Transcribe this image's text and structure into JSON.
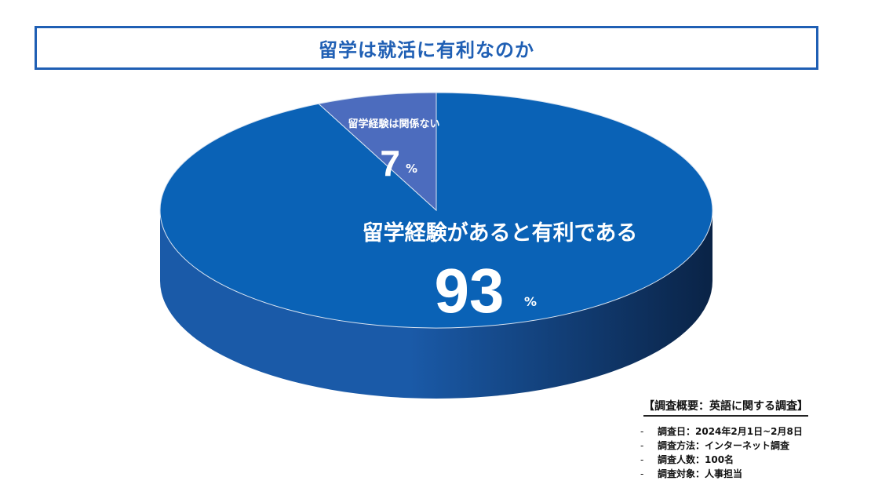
{
  "header": {
    "title": "留学は就活に有利なのか"
  },
  "chart_data": {
    "type": "pie",
    "title": "留学は就活に有利なのか",
    "slices": [
      {
        "label": "留学経験があると有利である",
        "value": 93,
        "value_text": "93",
        "unit": "%",
        "color": "#0a62b6"
      },
      {
        "label": "留学経験は関係ない",
        "value": 7,
        "value_text": "7",
        "unit": "%",
        "color": "#4c6cbe"
      }
    ],
    "colors": {
      "side_dark": "#0a2346",
      "side_light": "#1a5aa8"
    }
  },
  "survey": {
    "title": "【調査概要：英語に関する調査】",
    "dash": "-",
    "items": [
      "調査日：2024年2月1日~2月8日",
      "調査方法：インターネット調査",
      "調査人数：100名",
      "調査対象：人事担当"
    ]
  }
}
